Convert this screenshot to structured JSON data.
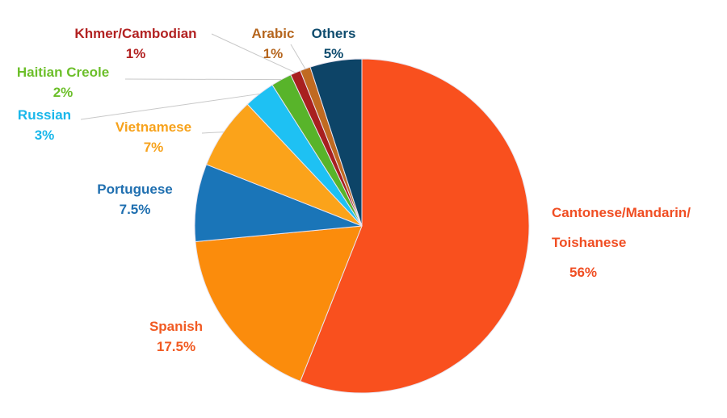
{
  "chart_data": {
    "type": "pie",
    "categories": [
      "Cantonese/Mandarin/\nToishanese",
      "Spanish",
      "Portuguese",
      "Vietnamese",
      "Russian",
      "Haitian Creole",
      "Khmer/Cambodian",
      "Arabic",
      "Others"
    ],
    "values": [
      56,
      17.5,
      7.5,
      7,
      3,
      2,
      1,
      1,
      5
    ],
    "value_labels": [
      "56%",
      "17.5%",
      "7.5%",
      "7%",
      "3%",
      "2%",
      "1%",
      "1%",
      "5%"
    ],
    "colors": [
      "#f9501e",
      "#fb8c0c",
      "#1a75b8",
      "#fba31a",
      "#1ec1f3",
      "#58b42a",
      "#a8201f",
      "#c06a21",
      "#0d4467"
    ],
    "label_colors": [
      "#f04e23",
      "#f15a22",
      "#1f6fb0",
      "#f7a21b",
      "#1ab7ea",
      "#6cbf2a",
      "#b22222",
      "#b5651d",
      "#0f4c6e"
    ]
  }
}
